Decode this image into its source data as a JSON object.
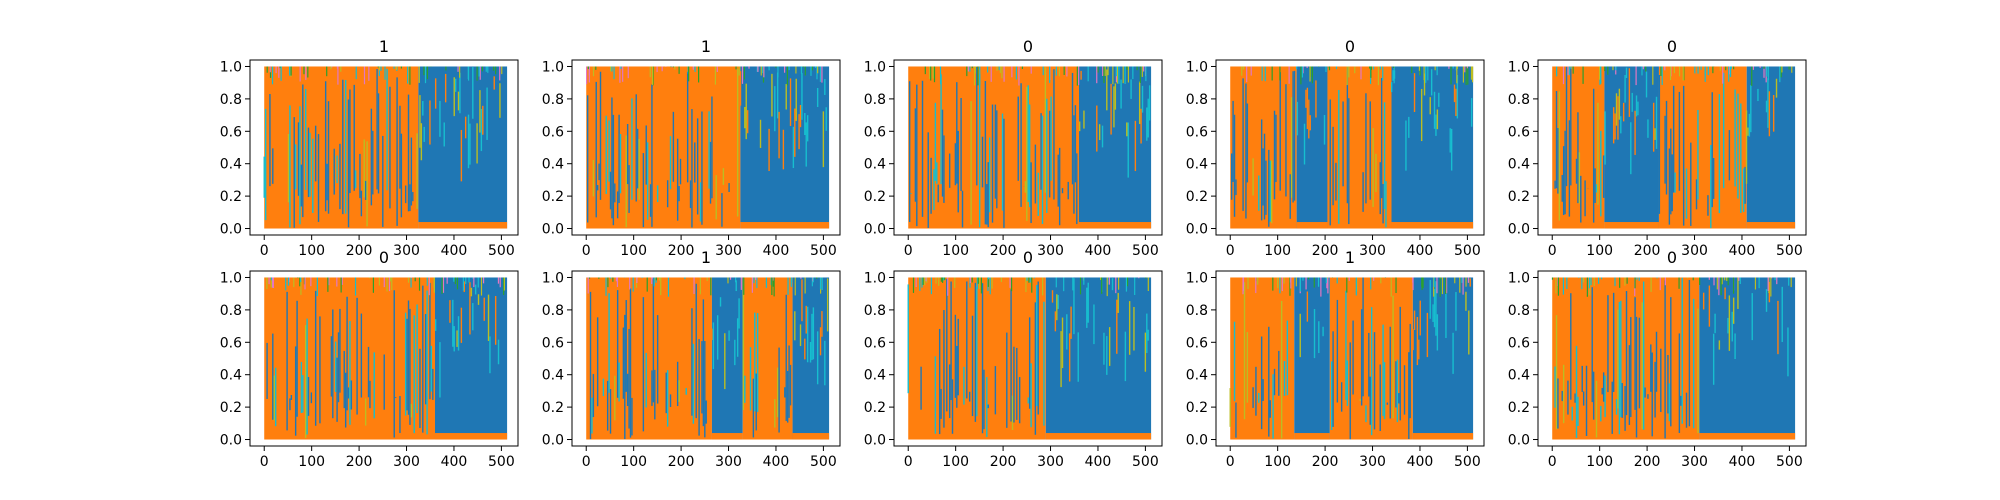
{
  "colors": {
    "orange": "#ff7f0e",
    "blue": "#1f77b4",
    "cyan": "#17becf",
    "olive": "#bcbd22",
    "pink": "#e377c2",
    "green": "#2ca02c"
  },
  "chart_data": [
    {
      "type": "area",
      "title": "1",
      "x_ticks": [
        0,
        100,
        200,
        300,
        400,
        500
      ],
      "y_ticks": [
        "0.0",
        "0.2",
        "0.4",
        "0.6",
        "0.8",
        "1.0"
      ],
      "xlim": [
        -30,
        535
      ],
      "ylim": [
        -0.04,
        1.04
      ],
      "n_points": 512,
      "segments": [
        {
          "start": 0,
          "end": 325,
          "dominant": "orange"
        },
        {
          "start": 325,
          "end": 512,
          "dominant": "blue"
        }
      ]
    },
    {
      "type": "area",
      "title": "1",
      "x_ticks": [
        0,
        100,
        200,
        300,
        400,
        500
      ],
      "y_ticks": [
        "0.0",
        "0.2",
        "0.4",
        "0.6",
        "0.8",
        "1.0"
      ],
      "xlim": [
        -30,
        535
      ],
      "ylim": [
        -0.04,
        1.04
      ],
      "n_points": 512,
      "segments": [
        {
          "start": 0,
          "end": 325,
          "dominant": "orange"
        },
        {
          "start": 325,
          "end": 512,
          "dominant": "blue"
        }
      ]
    },
    {
      "type": "area",
      "title": "0",
      "x_ticks": [
        0,
        100,
        200,
        300,
        400,
        500
      ],
      "y_ticks": [
        "0.0",
        "0.2",
        "0.4",
        "0.6",
        "0.8",
        "1.0"
      ],
      "xlim": [
        -30,
        535
      ],
      "ylim": [
        -0.04,
        1.04
      ],
      "n_points": 512,
      "segments": [
        {
          "start": 0,
          "end": 360,
          "dominant": "orange"
        },
        {
          "start": 360,
          "end": 512,
          "dominant": "blue"
        }
      ]
    },
    {
      "type": "area",
      "title": "0",
      "x_ticks": [
        0,
        100,
        200,
        300,
        400,
        500
      ],
      "y_ticks": [
        "0.0",
        "0.2",
        "0.4",
        "0.6",
        "0.8",
        "1.0"
      ],
      "xlim": [
        -30,
        535
      ],
      "ylim": [
        -0.04,
        1.04
      ],
      "n_points": 512,
      "segments": [
        {
          "start": 0,
          "end": 140,
          "dominant": "orange"
        },
        {
          "start": 140,
          "end": 205,
          "dominant": "blue"
        },
        {
          "start": 205,
          "end": 340,
          "dominant": "orange"
        },
        {
          "start": 340,
          "end": 512,
          "dominant": "blue"
        }
      ]
    },
    {
      "type": "area",
      "title": "0",
      "x_ticks": [
        0,
        100,
        200,
        300,
        400,
        500
      ],
      "y_ticks": [
        "0.0",
        "0.2",
        "0.4",
        "0.6",
        "0.8",
        "1.0"
      ],
      "xlim": [
        -30,
        535
      ],
      "ylim": [
        -0.04,
        1.04
      ],
      "n_points": 512,
      "segments": [
        {
          "start": 0,
          "end": 110,
          "dominant": "orange"
        },
        {
          "start": 110,
          "end": 225,
          "dominant": "blue"
        },
        {
          "start": 225,
          "end": 410,
          "dominant": "orange"
        },
        {
          "start": 410,
          "end": 512,
          "dominant": "blue"
        }
      ]
    },
    {
      "type": "area",
      "title": "0",
      "x_ticks": [
        0,
        100,
        200,
        300,
        400,
        500
      ],
      "y_ticks": [
        "0.0",
        "0.2",
        "0.4",
        "0.6",
        "0.8",
        "1.0"
      ],
      "xlim": [
        -30,
        535
      ],
      "ylim": [
        -0.04,
        1.04
      ],
      "n_points": 512,
      "segments": [
        {
          "start": 0,
          "end": 360,
          "dominant": "orange"
        },
        {
          "start": 360,
          "end": 512,
          "dominant": "blue"
        }
      ]
    },
    {
      "type": "area",
      "title": "1",
      "x_ticks": [
        0,
        100,
        200,
        300,
        400,
        500
      ],
      "y_ticks": [
        "0.0",
        "0.2",
        "0.4",
        "0.6",
        "0.8",
        "1.0"
      ],
      "xlim": [
        -30,
        535
      ],
      "ylim": [
        -0.04,
        1.04
      ],
      "n_points": 512,
      "segments": [
        {
          "start": 0,
          "end": 265,
          "dominant": "orange"
        },
        {
          "start": 265,
          "end": 330,
          "dominant": "blue"
        },
        {
          "start": 330,
          "end": 435,
          "dominant": "orange"
        },
        {
          "start": 435,
          "end": 512,
          "dominant": "blue"
        }
      ]
    },
    {
      "type": "area",
      "title": "0",
      "x_ticks": [
        0,
        100,
        200,
        300,
        400,
        500
      ],
      "y_ticks": [
        "0.0",
        "0.2",
        "0.4",
        "0.6",
        "0.8",
        "1.0"
      ],
      "xlim": [
        -30,
        535
      ],
      "ylim": [
        -0.04,
        1.04
      ],
      "n_points": 512,
      "segments": [
        {
          "start": 0,
          "end": 290,
          "dominant": "orange"
        },
        {
          "start": 290,
          "end": 512,
          "dominant": "blue"
        }
      ]
    },
    {
      "type": "area",
      "title": "1",
      "x_ticks": [
        0,
        100,
        200,
        300,
        400,
        500
      ],
      "y_ticks": [
        "0.0",
        "0.2",
        "0.4",
        "0.6",
        "0.8",
        "1.0"
      ],
      "xlim": [
        -30,
        535
      ],
      "ylim": [
        -0.04,
        1.04
      ],
      "n_points": 512,
      "segments": [
        {
          "start": 0,
          "end": 135,
          "dominant": "orange"
        },
        {
          "start": 135,
          "end": 210,
          "dominant": "blue"
        },
        {
          "start": 210,
          "end": 385,
          "dominant": "orange"
        },
        {
          "start": 385,
          "end": 512,
          "dominant": "blue"
        }
      ]
    },
    {
      "type": "area",
      "title": "0",
      "x_ticks": [
        0,
        100,
        200,
        300,
        400,
        500
      ],
      "y_ticks": [
        "0.0",
        "0.2",
        "0.4",
        "0.6",
        "0.8",
        "1.0"
      ],
      "xlim": [
        -30,
        535
      ],
      "ylim": [
        -0.04,
        1.04
      ],
      "n_points": 512,
      "segments": [
        {
          "start": 0,
          "end": 310,
          "dominant": "orange"
        },
        {
          "start": 310,
          "end": 512,
          "dominant": "blue"
        }
      ]
    }
  ]
}
